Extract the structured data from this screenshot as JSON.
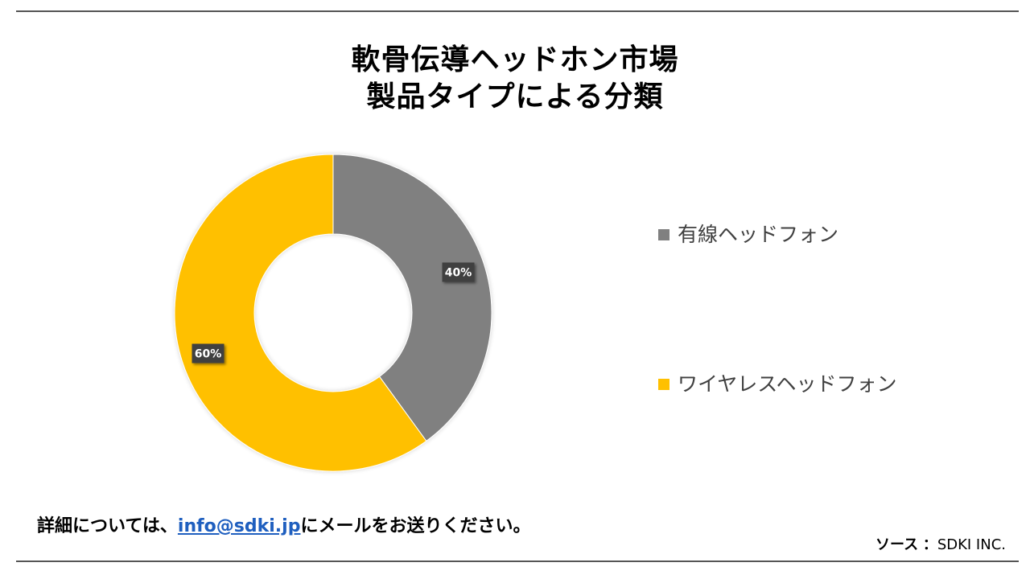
{
  "title": {
    "line1": "軟骨伝導ヘッドホン市場",
    "line2": "製品タイプによる分類"
  },
  "chart_data": {
    "type": "pie",
    "donut": true,
    "categories": [
      "有線ヘッドフォン",
      "ワイヤレスヘッドフォン"
    ],
    "values": [
      40,
      60
    ],
    "data_labels": [
      "40%",
      "60%"
    ],
    "colors": [
      "#808080",
      "#FFC000"
    ],
    "legend_position": "right"
  },
  "footer": {
    "prefix": "詳細については、",
    "email": "info@sdki.jp",
    "suffix": "にメールをお送りください。"
  },
  "source": {
    "label": "ソース",
    "separator": "：",
    "value": "SDKI INC."
  }
}
